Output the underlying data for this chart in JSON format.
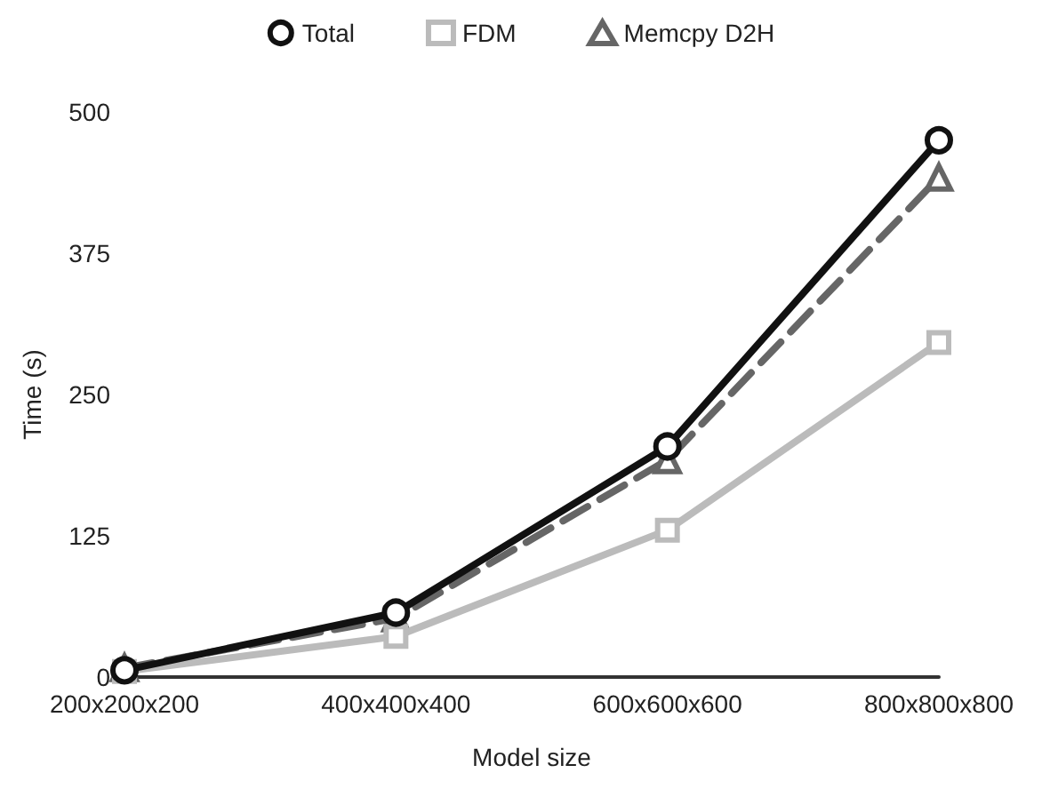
{
  "chart_data": {
    "type": "line",
    "xlabel": "Model size",
    "ylabel": "Time (s)",
    "categories": [
      "200x200x200",
      "400x400x400",
      "600x600x600",
      "800x800x800"
    ],
    "series": [
      {
        "name": "Total",
        "color": "#111111",
        "marker": "circle",
        "line_style": "solid",
        "values": [
          6,
          57,
          204,
          475
        ]
      },
      {
        "name": "FDM",
        "color": "#bbbbbb",
        "marker": "square",
        "line_style": "solid",
        "values": [
          5,
          36,
          130,
          296
        ]
      },
      {
        "name": "Memcpy D2H",
        "color": "#666666",
        "marker": "triangle",
        "line_style": "dashed",
        "values": [
          8,
          52,
          192,
          442
        ]
      }
    ],
    "ylim": [
      0,
      500
    ],
    "yticks": [
      0,
      125,
      250,
      375,
      500
    ],
    "grid": false,
    "legend": "top"
  }
}
